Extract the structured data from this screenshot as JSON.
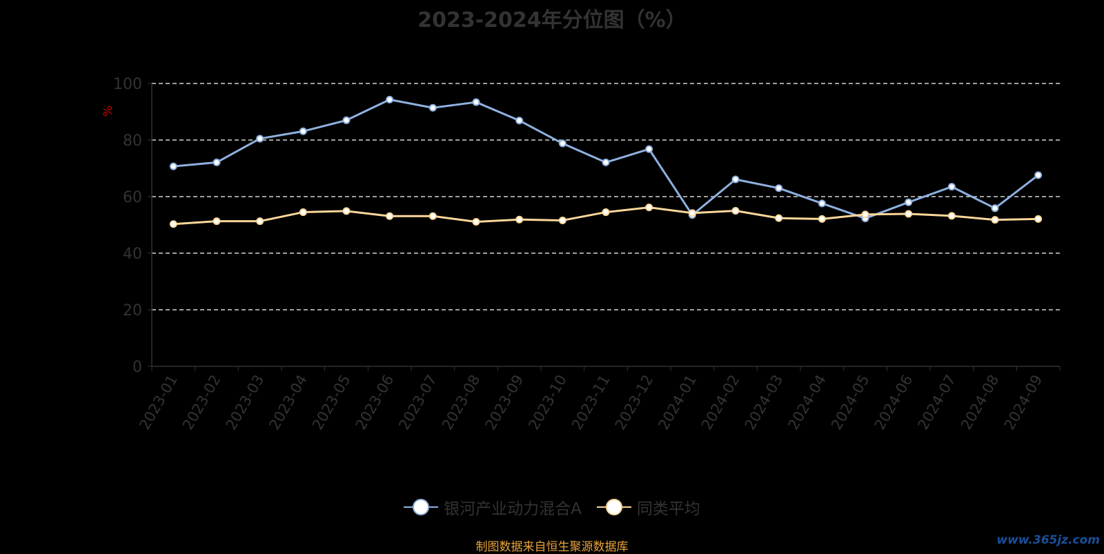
{
  "chart_data": {
    "type": "line",
    "title": "2023-2024年分位图（%）",
    "ylabel": "%",
    "ylim": [
      0,
      100
    ],
    "yticks": [
      0,
      20,
      40,
      60,
      80,
      100
    ],
    "categories": [
      "2023-01",
      "2023-02",
      "2023-03",
      "2023-04",
      "2023-05",
      "2023-06",
      "2023-07",
      "2023-08",
      "2023-09",
      "2023-10",
      "2023-11",
      "2023-12",
      "2024-01",
      "2024-02",
      "2024-03",
      "2024-04",
      "2024-05",
      "2024-06",
      "2024-07",
      "2024-08",
      "2024-09"
    ],
    "series": [
      {
        "name": "银河产业动力混合A",
        "color": "#8fb1e0",
        "values": [
          70.7,
          72.1,
          80.5,
          83.1,
          87.0,
          94.3,
          91.4,
          93.4,
          86.9,
          78.8,
          72.1,
          76.8,
          53.5,
          66.1,
          63.0,
          57.6,
          52.3,
          58.0,
          63.5,
          55.9,
          67.6
        ]
      },
      {
        "name": "同类平均",
        "color": "#fcd79a",
        "values": [
          50.3,
          51.3,
          51.3,
          54.5,
          54.9,
          53.1,
          53.1,
          51.1,
          51.9,
          51.6,
          54.5,
          56.2,
          54.2,
          55.0,
          52.4,
          52.1,
          53.7,
          53.9,
          53.2,
          51.8,
          52.1
        ]
      }
    ],
    "grid": true,
    "legend_position": "bottom-center"
  },
  "footer": {
    "source": "制图数据来自恒生聚源数据库",
    "source_color": "#e8a33a",
    "watermark": "www.365jz.com"
  }
}
